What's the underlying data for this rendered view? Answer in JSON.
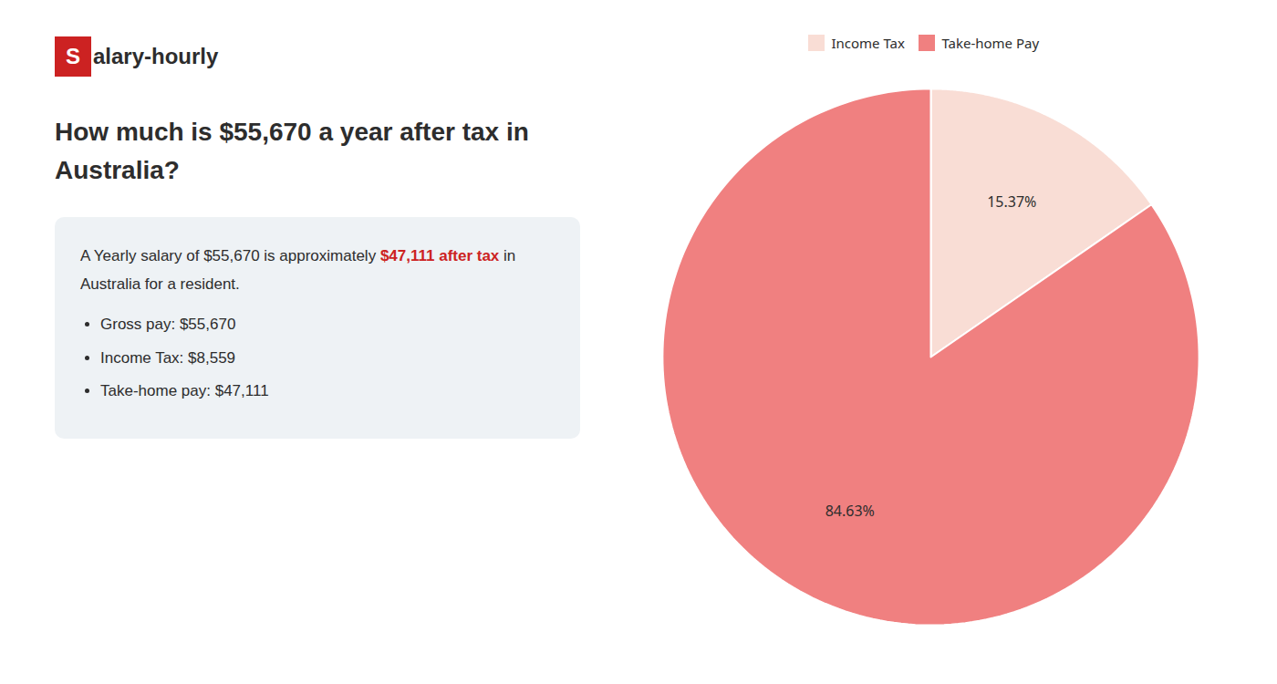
{
  "chart_data": {
    "type": "pie",
    "title": "How much is $55,670 a year after tax in\nAustralia?",
    "annotations": [
      {
        "text": "S",
        "color": "#cc2222"
      },
      {
        "text": "alary-hourly"
      },
      {
        "text": "A Yearly salary of $55,670 is approximately "
      },
      {
        "text": "$47,111 after tax",
        "color": "#cc2222"
      },
      {
        "text": " in"
      },
      {
        "text": "Australia for a resident."
      },
      {
        "text": "Gross pay: $55,670"
      },
      {
        "text": "Income Tax: $8,559"
      },
      {
        "text": "Take-home pay: $47,111"
      }
    ],
    "categories": [
      "Income Tax",
      "Take-home Pay"
    ],
    "values": [
      15.37,
      84.63
    ],
    "value_labels": [
      "15.37%",
      "84.63%"
    ],
    "colors": [
      "#f9ddd5",
      "#f08080"
    ],
    "data_labels": true,
    "legend": "top"
  }
}
